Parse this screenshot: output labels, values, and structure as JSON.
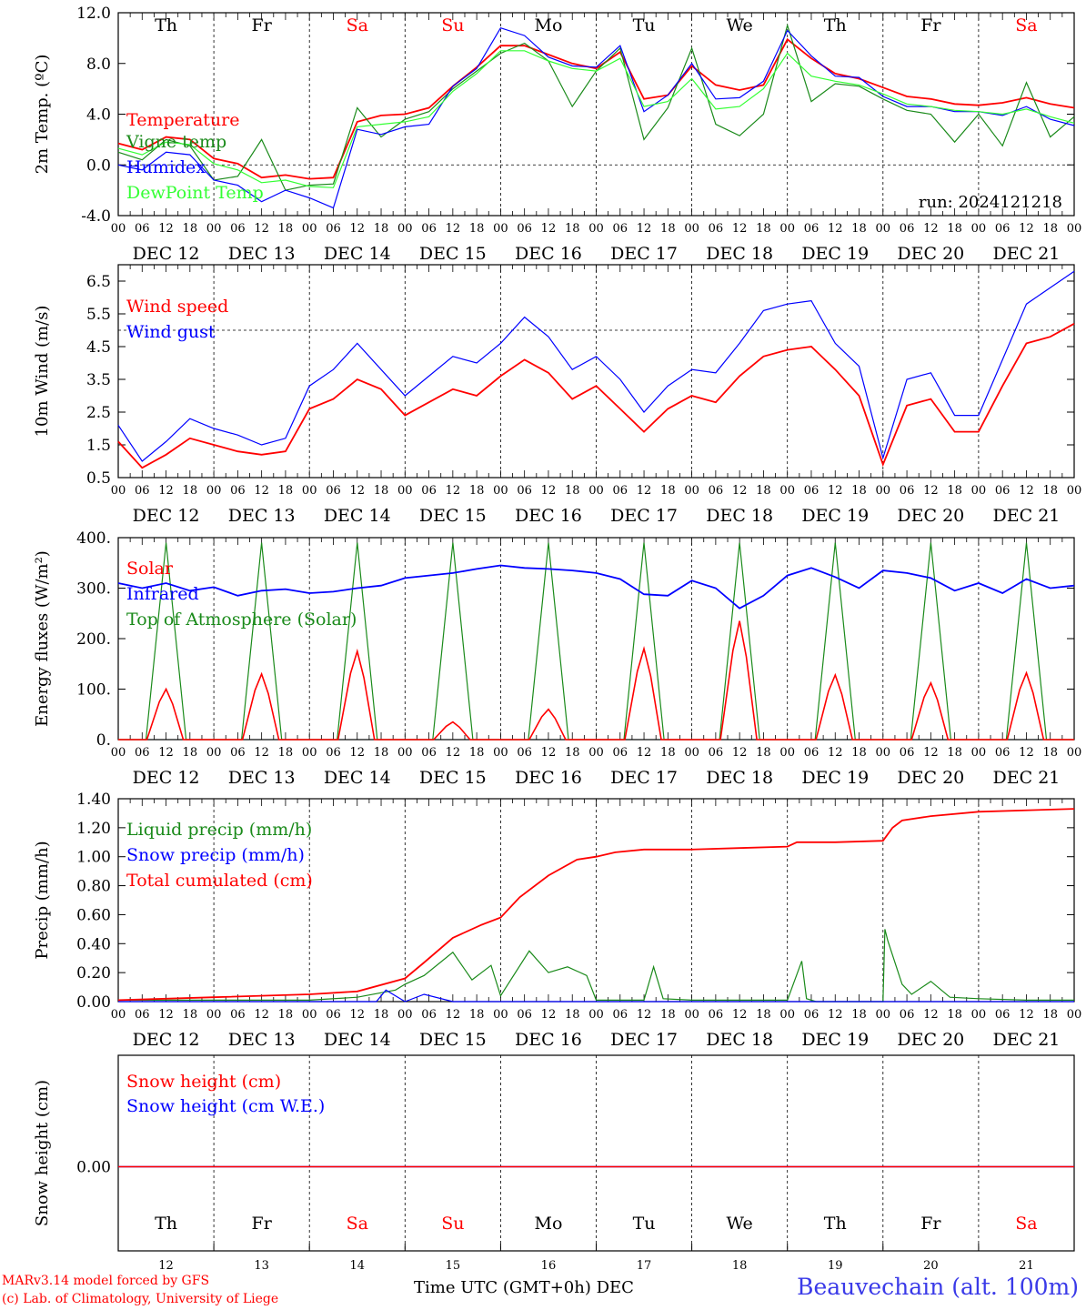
{
  "run_label": "run: 2024121218",
  "date_labels": [
    "DEC 12",
    "DEC 13",
    "DEC 14",
    "DEC 15",
    "DEC 16",
    "DEC 17",
    "DEC 18",
    "DEC 19",
    "DEC 20",
    "DEC 21"
  ],
  "weekdays": [
    "Th",
    "Fr",
    "Sa",
    "Su",
    "Mo",
    "Tu",
    "We",
    "Th",
    "Fr",
    "Sa"
  ],
  "weekend_flags": [
    false,
    false,
    true,
    true,
    false,
    false,
    false,
    false,
    false,
    true
  ],
  "day_numbers": [
    "12",
    "13",
    "14",
    "15",
    "16",
    "17",
    "18",
    "19",
    "20",
    "21"
  ],
  "hour_ticks": [
    "00",
    "06",
    "12",
    "18"
  ],
  "hour_tick_end": "00",
  "colors": {
    "red": "#ff0000",
    "green": "#1a8a1a",
    "blue": "#0000ff",
    "lightgreen": "#33ff33",
    "weekend": "#ff0000",
    "station": "#3a3ae8"
  },
  "footer": {
    "credit_line1": "MARv3.14 model forced by GFS",
    "credit_line2": "(c) Lab. of Climatology, University of Liege",
    "axis_title": "Time UTC (GMT+0h)",
    "axis_month": "DEC",
    "station": "Beauvechain (alt. 100m)"
  },
  "chart_data": [
    {
      "type": "line",
      "ylabel": "2m Temp. (ºC)",
      "ylim": [
        -4,
        12
      ],
      "ytick_labels": [
        "-4.0",
        "0.0",
        "4.0",
        "8.0",
        "12.0"
      ],
      "ref_line": 0,
      "x_days": [
        0,
        0.25,
        0.5,
        0.75,
        1,
        1.25,
        1.5,
        1.75,
        2,
        2.25,
        2.5,
        2.75,
        3,
        3.25,
        3.5,
        3.75,
        4,
        4.25,
        4.5,
        4.75,
        5,
        5.25,
        5.5,
        5.75,
        6,
        6.25,
        6.5,
        6.75,
        7,
        7.25,
        7.5,
        7.75,
        8,
        8.25,
        8.5,
        8.75,
        9,
        9.25,
        9.5,
        9.75,
        10
      ],
      "series": [
        {
          "name": "Temperature",
          "color": "red",
          "values": [
            1.7,
            1.2,
            2.2,
            2.0,
            0.5,
            0.1,
            -1.0,
            -0.8,
            -1.1,
            -1.0,
            3.4,
            3.9,
            4.0,
            4.5,
            6.2,
            7.7,
            9.4,
            9.4,
            8.7,
            8.0,
            7.6,
            8.9,
            5.2,
            5.5,
            7.8,
            6.3,
            5.9,
            6.3,
            9.9,
            8.4,
            7.2,
            6.8,
            6.1,
            5.4,
            5.2,
            4.8,
            4.7,
            4.9,
            5.3,
            4.8,
            4.5
          ]
        },
        {
          "name": "Vigne temp",
          "color": "green",
          "values": [
            1.0,
            0.4,
            2.0,
            1.5,
            -1.2,
            -0.9,
            2.0,
            -2.0,
            -1.6,
            -1.5,
            4.5,
            2.2,
            3.6,
            4.2,
            6.0,
            7.4,
            8.8,
            9.6,
            8.2,
            4.6,
            7.4,
            9.2,
            2.0,
            4.5,
            9.2,
            3.2,
            2.3,
            4.0,
            11.0,
            5.0,
            6.4,
            6.2,
            5.2,
            4.3,
            4.0,
            1.8,
            4.0,
            1.5,
            6.5,
            2.2,
            3.8
          ]
        },
        {
          "name": "Humidex",
          "color": "blue",
          "values": [
            0.0,
            -0.4,
            1.0,
            0.8,
            -1.2,
            -1.6,
            -2.9,
            -2.0,
            -2.6,
            -3.4,
            2.8,
            2.4,
            3.0,
            3.2,
            6.2,
            7.6,
            10.8,
            10.2,
            8.5,
            7.8,
            7.7,
            9.4,
            4.2,
            5.5,
            8.0,
            5.2,
            5.3,
            6.6,
            10.6,
            8.6,
            7.0,
            6.9,
            5.4,
            4.6,
            4.6,
            4.2,
            4.2,
            3.9,
            4.6,
            3.6,
            3.1
          ]
        },
        {
          "name": "DewPoint Temp",
          "color": "lightgreen",
          "values": [
            1.3,
            0.8,
            1.8,
            1.6,
            0.1,
            -0.4,
            -1.4,
            -1.2,
            -1.7,
            -1.8,
            3.0,
            3.2,
            3.4,
            3.8,
            5.8,
            7.2,
            9.0,
            9.0,
            8.2,
            7.6,
            7.4,
            8.4,
            4.6,
            5.0,
            6.8,
            4.4,
            4.6,
            6.0,
            8.8,
            7.0,
            6.6,
            6.3,
            5.6,
            4.8,
            4.6,
            4.3,
            4.2,
            4.0,
            4.4,
            3.8,
            3.3
          ]
        }
      ]
    },
    {
      "type": "line",
      "ylabel": "10m Wind (m/s)",
      "ylim": [
        0.5,
        7.0
      ],
      "ytick_labels": [
        "0.5",
        "1.5",
        "2.5",
        "3.5",
        "4.5",
        "5.5",
        "6.5"
      ],
      "ref_line": 5.0,
      "x_days": [
        0,
        0.25,
        0.5,
        0.75,
        1,
        1.25,
        1.5,
        1.75,
        2,
        2.25,
        2.5,
        2.75,
        3,
        3.25,
        3.5,
        3.75,
        4,
        4.25,
        4.5,
        4.75,
        5,
        5.25,
        5.5,
        5.75,
        6,
        6.25,
        6.5,
        6.75,
        7,
        7.25,
        7.5,
        7.75,
        8,
        8.25,
        8.5,
        8.75,
        9,
        9.25,
        9.5,
        9.75,
        10
      ],
      "series": [
        {
          "name": "Wind speed",
          "color": "red",
          "values": [
            1.6,
            0.8,
            1.2,
            1.7,
            1.5,
            1.3,
            1.2,
            1.3,
            2.6,
            2.9,
            3.5,
            3.2,
            2.4,
            2.8,
            3.2,
            3.0,
            3.6,
            4.1,
            3.7,
            2.9,
            3.3,
            2.6,
            1.9,
            2.6,
            3.0,
            2.8,
            3.6,
            4.2,
            4.4,
            4.5,
            3.8,
            3.0,
            0.9,
            2.7,
            2.9,
            1.9,
            1.9,
            3.3,
            4.6,
            4.8,
            5.2
          ]
        },
        {
          "name": "Wind gust",
          "color": "blue",
          "values": [
            2.1,
            1.0,
            1.6,
            2.3,
            2.0,
            1.8,
            1.5,
            1.7,
            3.3,
            3.8,
            4.6,
            3.8,
            3.0,
            3.6,
            4.2,
            4.0,
            4.6,
            5.4,
            4.8,
            3.8,
            4.2,
            3.5,
            2.5,
            3.3,
            3.8,
            3.7,
            4.6,
            5.6,
            5.8,
            5.9,
            4.6,
            3.9,
            1.1,
            3.5,
            3.7,
            2.4,
            2.4,
            4.1,
            5.8,
            6.3,
            6.8
          ]
        }
      ]
    },
    {
      "type": "line",
      "ylabel": "Energy fluxes (W/m²)",
      "ylim": [
        0,
        400
      ],
      "ytick_labels": [
        "0.",
        "100.",
        "200.",
        "300.",
        "400."
      ],
      "x_days": [
        0,
        0.25,
        0.5,
        0.75,
        1,
        1.25,
        1.5,
        1.75,
        2,
        2.25,
        2.5,
        2.75,
        3,
        3.25,
        3.5,
        3.75,
        4,
        4.25,
        4.5,
        4.75,
        5,
        5.25,
        5.5,
        5.75,
        6,
        6.25,
        6.5,
        6.75,
        7,
        7.25,
        7.5,
        7.75,
        8,
        8.25,
        8.5,
        8.75,
        9,
        9.25,
        9.5,
        9.75,
        10
      ],
      "solar_peaks": [
        100,
        130,
        175,
        35,
        60,
        180,
        235,
        128,
        112,
        132
      ],
      "toa_peak": 390,
      "series": [
        {
          "name": "Solar",
          "color": "red",
          "note": "diurnal peaks listed in solar_peaks"
        },
        {
          "name": "Infrared",
          "color": "blue",
          "values": [
            310,
            300,
            310,
            295,
            302,
            285,
            295,
            298,
            290,
            293,
            300,
            305,
            320,
            325,
            330,
            338,
            345,
            340,
            338,
            335,
            330,
            318,
            288,
            285,
            315,
            300,
            260,
            285,
            325,
            340,
            322,
            300,
            335,
            330,
            320,
            295,
            310,
            290,
            318,
            300,
            305
          ]
        },
        {
          "name": "Top of Atmosphere (Solar)",
          "color": "green",
          "note": "diurnal peaks of toa_peak"
        }
      ]
    },
    {
      "type": "line",
      "ylabel": "Precip (mm/h)",
      "ylim": [
        0,
        1.4
      ],
      "ytick_labels": [
        "0.00",
        "0.20",
        "0.40",
        "0.60",
        "0.80",
        "1.00",
        "1.20",
        "1.40"
      ],
      "series": [
        {
          "name": "Liquid precip (mm/h)",
          "color": "green",
          "x": [
            0,
            1,
            2,
            2.5,
            2.9,
            3.0,
            3.2,
            3.5,
            3.7,
            3.9,
            4.0,
            4.3,
            4.5,
            4.7,
            4.9,
            5.0,
            5.5,
            5.6,
            5.7,
            6.0,
            7.0,
            7.15,
            7.2,
            7.3,
            8.0,
            8.02,
            8.05,
            8.2,
            8.3,
            8.5,
            8.7,
            9.0,
            9.5,
            10
          ],
          "values": [
            0.01,
            0.01,
            0.01,
            0.03,
            0.08,
            0.12,
            0.18,
            0.34,
            0.15,
            0.25,
            0.04,
            0.35,
            0.2,
            0.24,
            0.18,
            0.01,
            0.01,
            0.24,
            0.02,
            0.01,
            0.01,
            0.28,
            0.02,
            0.0,
            0.0,
            0.5,
            0.42,
            0.12,
            0.05,
            0.14,
            0.03,
            0.02,
            0.01,
            0.01
          ]
        },
        {
          "name": "Snow precip (mm/h)",
          "color": "blue",
          "x": [
            0,
            2.7,
            2.8,
            3.0,
            3.2,
            3.5,
            4.0,
            10
          ],
          "values": [
            0.0,
            0.0,
            0.08,
            0.0,
            0.05,
            0.0,
            0.0,
            0.0
          ]
        },
        {
          "name": "Total cumulated (cm)",
          "color": "red",
          "x": [
            0,
            1,
            2,
            2.5,
            3,
            3.2,
            3.5,
            3.8,
            4.0,
            4.2,
            4.5,
            4.8,
            5.0,
            5.2,
            5.5,
            5.8,
            6.0,
            6.5,
            7.0,
            7.1,
            7.5,
            8.0,
            8.1,
            8.2,
            8.5,
            9,
            10
          ],
          "values": [
            0.01,
            0.03,
            0.05,
            0.07,
            0.16,
            0.27,
            0.44,
            0.53,
            0.58,
            0.72,
            0.87,
            0.98,
            1.0,
            1.03,
            1.05,
            1.05,
            1.05,
            1.06,
            1.07,
            1.1,
            1.1,
            1.11,
            1.2,
            1.25,
            1.28,
            1.31,
            1.33
          ]
        }
      ]
    },
    {
      "type": "line",
      "ylabel": "Snow height (cm)",
      "ytick_labels": [
        "0.00"
      ],
      "series": [
        {
          "name": "Snow height (cm)",
          "color": "red",
          "values": [
            0,
            0
          ]
        },
        {
          "name": "Snow height (cm W.E.)",
          "color": "blue",
          "values": [
            0,
            0
          ]
        }
      ]
    }
  ]
}
